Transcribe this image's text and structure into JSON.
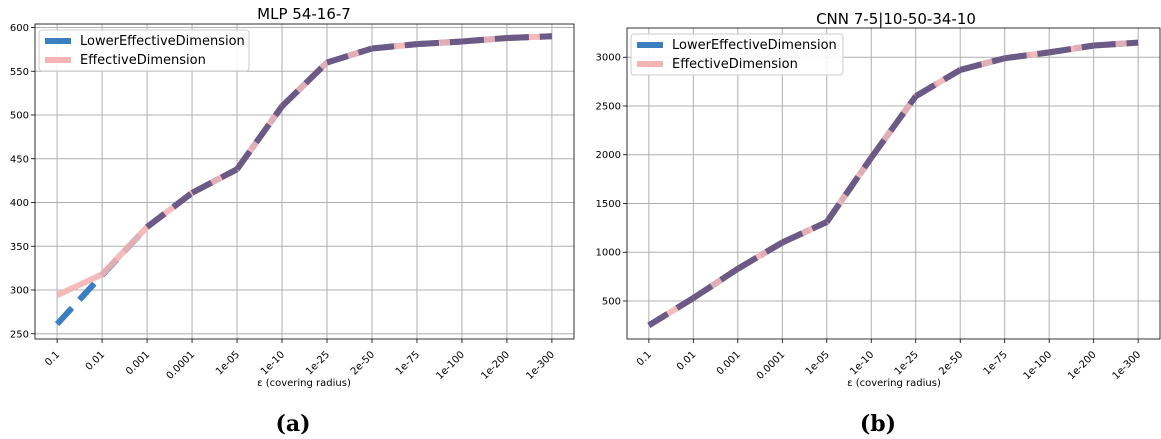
{
  "panels": {
    "a": {
      "caption": "(a)",
      "title": "MLP 54-16-7",
      "xlabel": "ε (covering radius)"
    },
    "b": {
      "caption": "(b)",
      "title": "CNN 7-5|10-50-34-10",
      "xlabel": "ε (covering radius)"
    }
  },
  "colors": {
    "lower": "#3a7fbf",
    "effective": "#f4b4b4",
    "overlap": "#6b5a86",
    "grid": "#b0b0b0"
  },
  "chart_data": [
    {
      "type": "line",
      "title": "MLP 54-16-7",
      "xlabel": "ε (covering radius)",
      "ylabel": "",
      "categories": [
        "0.1",
        "0.01",
        "0.001",
        "0.0001",
        "1e-05",
        "1e-10",
        "1e-25",
        "2e-50",
        "1e-75",
        "1e-100",
        "1e-200",
        "1e-300"
      ],
      "ylim": [
        244,
        604
      ],
      "yticks": [
        250,
        300,
        350,
        400,
        450,
        500,
        550,
        600
      ],
      "grid": true,
      "legend_position": "top-left",
      "series": [
        {
          "name": "LowerEffectiveDimension",
          "values": [
            261,
            317,
            372,
            411,
            438,
            510,
            560,
            576,
            581,
            584,
            588,
            590
          ]
        },
        {
          "name": "EffectiveDimension",
          "values": [
            294,
            318,
            372,
            411,
            438,
            510,
            560,
            576,
            581,
            584,
            588,
            590
          ]
        }
      ]
    },
    {
      "type": "line",
      "title": "CNN 7-5|10-50-34-10",
      "xlabel": "ε (covering radius)",
      "ylabel": "",
      "categories": [
        "0.1",
        "0.01",
        "0.001",
        "0.0001",
        "1e-05",
        "1e-10",
        "1e-25",
        "2e-50",
        "1e-75",
        "1e-100",
        "1e-200",
        "1e-300"
      ],
      "ylim": [
        110,
        3300
      ],
      "yticks": [
        500,
        1000,
        1500,
        2000,
        2500,
        3000
      ],
      "grid": true,
      "legend_position": "top-left",
      "series": [
        {
          "name": "LowerEffectiveDimension",
          "values": [
            250,
            530,
            830,
            1100,
            1310,
            1970,
            2600,
            2870,
            2990,
            3050,
            3120,
            3150
          ]
        },
        {
          "name": "EffectiveDimension",
          "values": [
            250,
            530,
            830,
            1100,
            1310,
            1970,
            2600,
            2870,
            2990,
            3050,
            3120,
            3150
          ]
        }
      ]
    }
  ]
}
